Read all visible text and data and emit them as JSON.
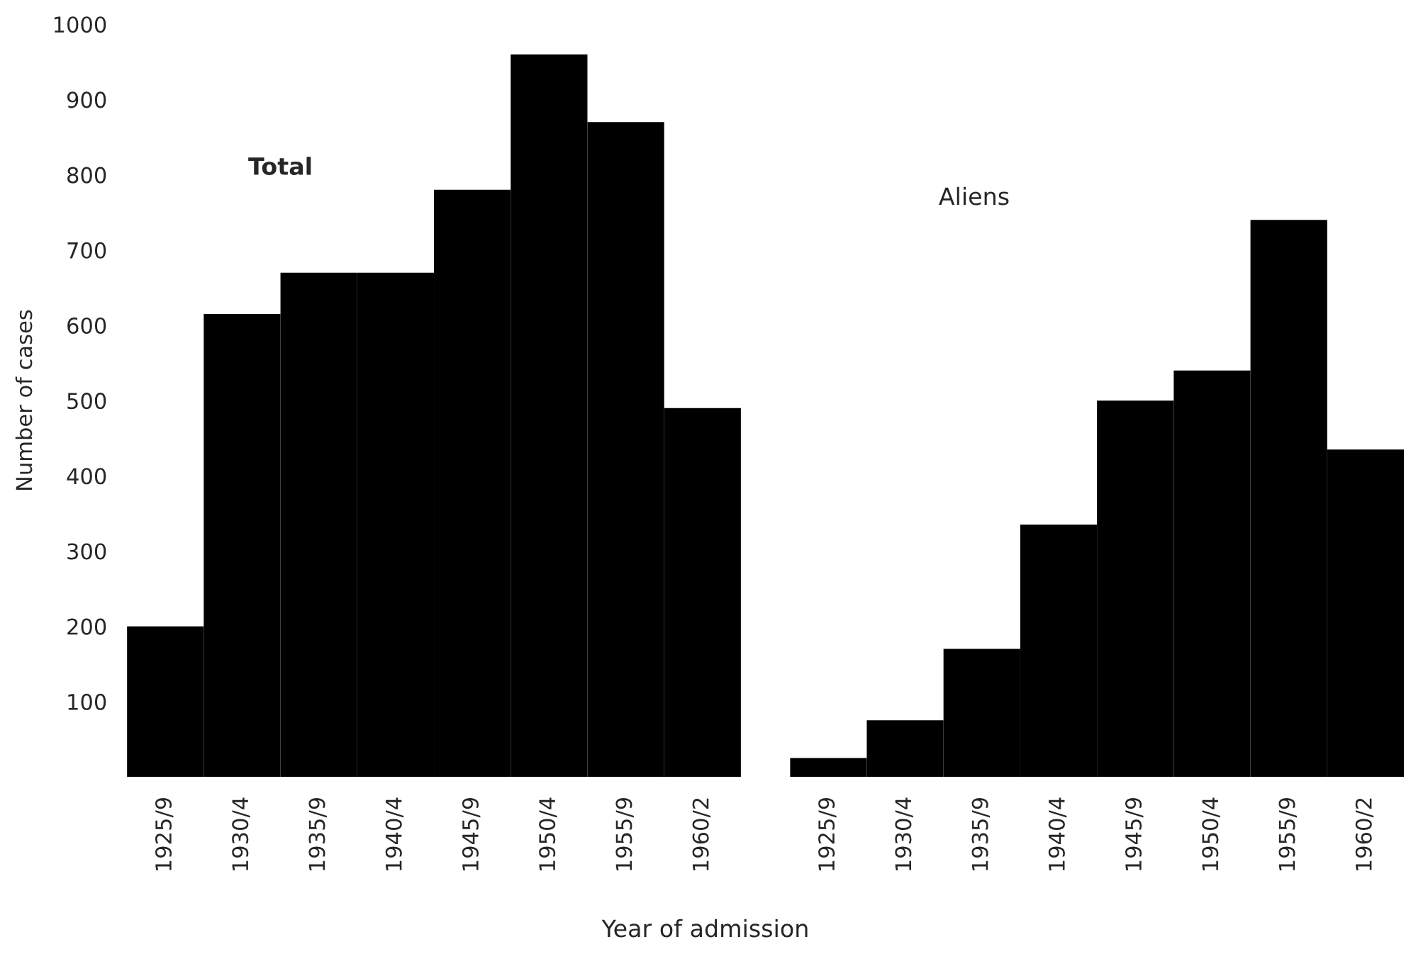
{
  "chart_data": [
    {
      "type": "bar",
      "title": "Total",
      "ylabel": "Number of cases",
      "xlabel": "Year of admission",
      "categories": [
        "1925/9",
        "1930/4",
        "1935/9",
        "1940/4",
        "1945/9",
        "1950/4",
        "1955/9",
        "1960/2"
      ],
      "values": [
        200,
        615,
        670,
        670,
        780,
        960,
        870,
        490
      ],
      "color": "#000000",
      "ylim": [
        0,
        1000
      ],
      "yticks": [
        100,
        200,
        300,
        400,
        500,
        600,
        700,
        800,
        900,
        1000
      ],
      "grid": false
    },
    {
      "type": "bar",
      "title": "Aliens",
      "categories": [
        "1925/9",
        "1930/4",
        "1935/9",
        "1940/4",
        "1945/9",
        "1950/4",
        "1955/9",
        "1960/2"
      ],
      "values": [
        25,
        75,
        170,
        335,
        500,
        540,
        740,
        435
      ],
      "color": "#000000",
      "ylim": [
        0,
        1000
      ],
      "yticks": [
        100,
        200,
        300,
        400,
        500,
        600,
        700,
        800,
        900,
        1000
      ],
      "grid": false,
      "tick_labels": "x"
    }
  ]
}
